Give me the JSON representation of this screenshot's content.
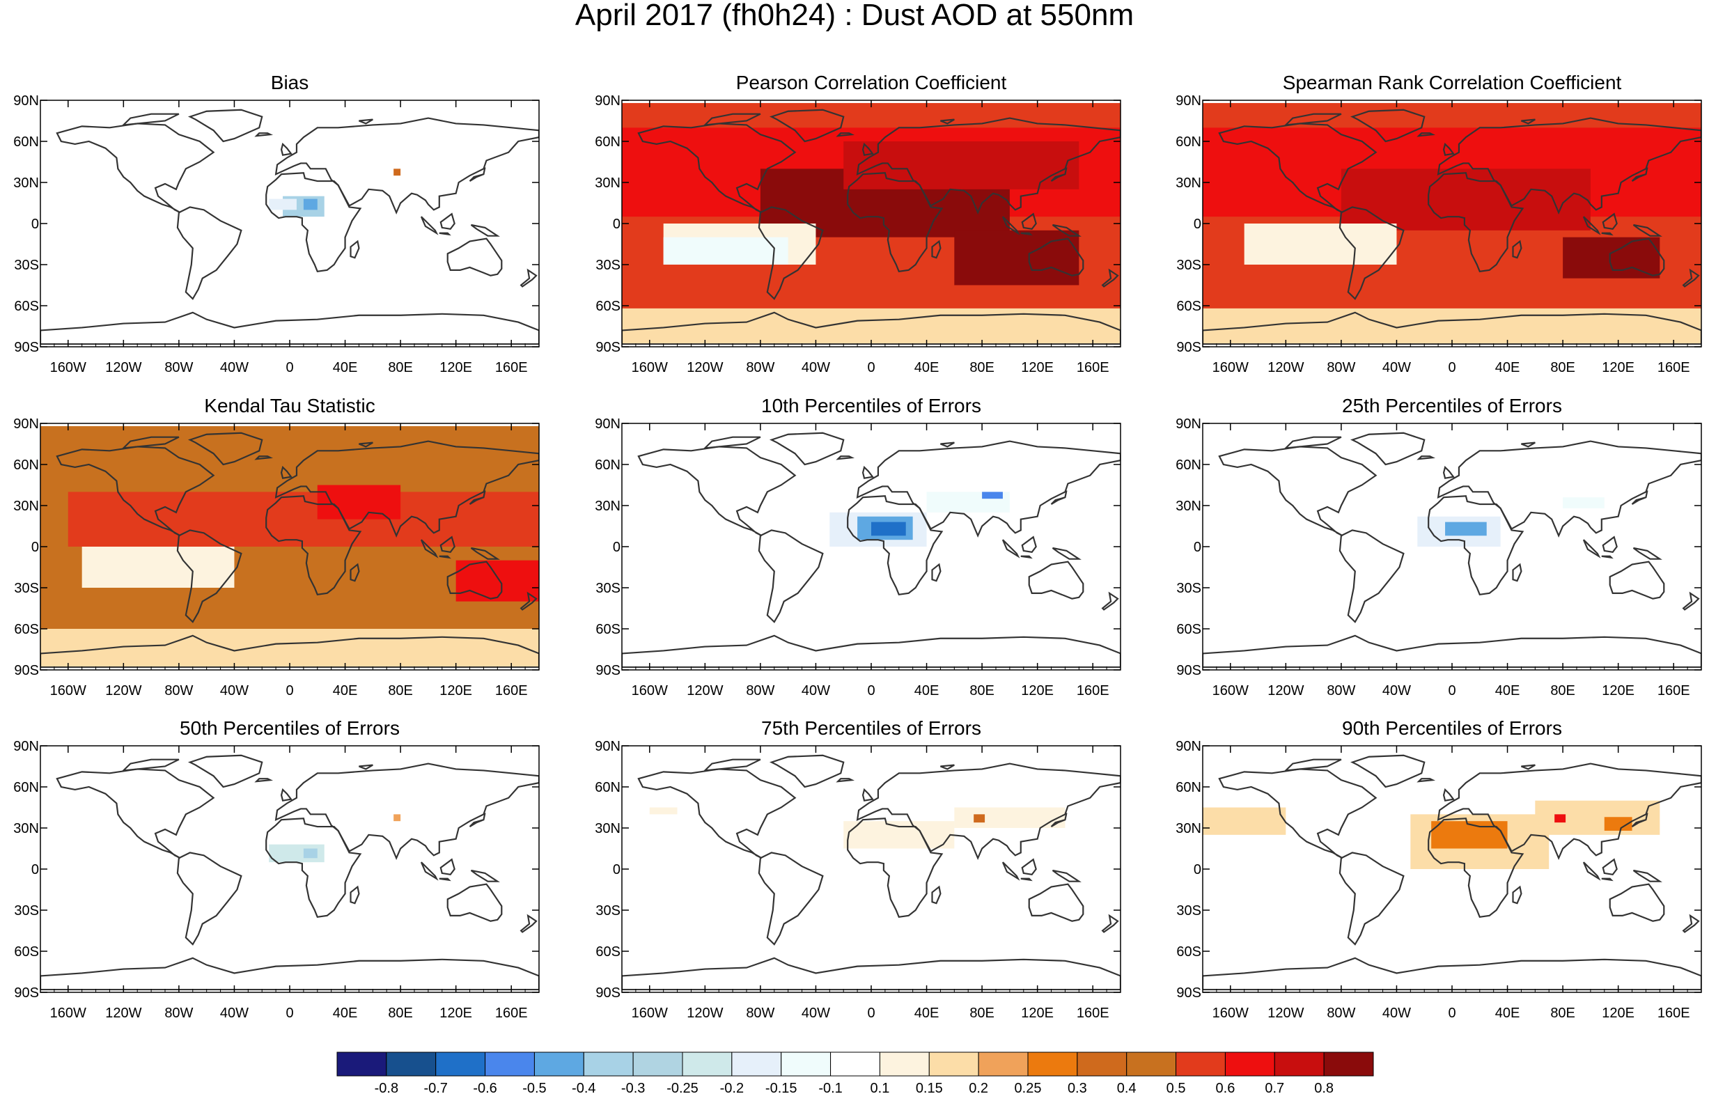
{
  "figure": {
    "title": "April 2017 (fh0h24) : Dust AOD at 550nm"
  },
  "axes": {
    "lat_labels": [
      "90N",
      "60N",
      "30N",
      "0",
      "30S",
      "60S",
      "90S"
    ],
    "lat_values": [
      90,
      60,
      30,
      0,
      -30,
      -60,
      -90
    ],
    "lon_labels": [
      "160W",
      "120W",
      "80W",
      "40W",
      "0",
      "40E",
      "80E",
      "120E",
      "160E"
    ],
    "lon_values": [
      -160,
      -120,
      -80,
      -40,
      0,
      40,
      80,
      120,
      160
    ],
    "lon_range": [
      -180,
      180
    ],
    "lat_range": [
      -90,
      90
    ]
  },
  "colorbar": {
    "labels": [
      "-0.8",
      "-0.7",
      "-0.6",
      "-0.5",
      "-0.4",
      "-0.3",
      "-0.25",
      "-0.2",
      "-0.15",
      "-0.1",
      "0.1",
      "0.15",
      "0.2",
      "0.25",
      "0.3",
      "0.4",
      "0.5",
      "0.6",
      "0.7",
      "0.8"
    ],
    "colors": [
      "#1a1a7a",
      "#17508e",
      "#1f70c8",
      "#4a86ec",
      "#5ea8e2",
      "#a8d2e6",
      "#b0d4e2",
      "#cfe9ea",
      "#e6f0fa",
      "#f0fcfc",
      "#ffffff",
      "#fdf3df",
      "#fcdda8",
      "#f0a25a",
      "#ec7a0e",
      "#cf6a1d",
      "#c8711f",
      "#e23b1c",
      "#ee0f0f",
      "#c80e0e",
      "#8a0b0b"
    ]
  },
  "chart_data": [
    {
      "type": "heatmap",
      "title": "Bias",
      "xlim": [
        -180,
        180
      ],
      "ylim": [
        -90,
        90
      ],
      "regions": [
        {
          "lon": [
            -5,
            25
          ],
          "lat": [
            5,
            20
          ],
          "value": -0.4
        },
        {
          "lon": [
            10,
            20
          ],
          "lat": [
            10,
            18
          ],
          "value": -0.5
        },
        {
          "lon": [
            -15,
            5
          ],
          "lat": [
            10,
            18
          ],
          "value": -0.2
        },
        {
          "lon": [
            75,
            80
          ],
          "lat": [
            35,
            40
          ],
          "value": 0.3
        }
      ]
    },
    {
      "type": "heatmap",
      "title": "Pearson Correlation Coefficient",
      "xlim": [
        -180,
        180
      ],
      "ylim": [
        -90,
        90
      ],
      "regions": [
        {
          "lon": [
            -180,
            180
          ],
          "lat": [
            -62,
            88
          ],
          "value": 0.5
        },
        {
          "lon": [
            -180,
            180
          ],
          "lat": [
            5,
            70
          ],
          "value": 0.6
        },
        {
          "lon": [
            -80,
            100
          ],
          "lat": [
            -10,
            40
          ],
          "value": 0.8
        },
        {
          "lon": [
            -20,
            150
          ],
          "lat": [
            25,
            60
          ],
          "value": 0.7
        },
        {
          "lon": [
            60,
            150
          ],
          "lat": [
            -45,
            -5
          ],
          "value": 0.8
        },
        {
          "lon": [
            -150,
            -40
          ],
          "lat": [
            -30,
            0
          ],
          "value": 0.1
        },
        {
          "lon": [
            -150,
            -60
          ],
          "lat": [
            -30,
            -10
          ],
          "value": -0.15
        },
        {
          "lon": [
            -180,
            180
          ],
          "lat": [
            -88,
            -62
          ],
          "value": 0.15
        }
      ]
    },
    {
      "type": "heatmap",
      "title": "Spearman Rank Correlation Coefficient",
      "xlim": [
        -180,
        180
      ],
      "ylim": [
        -90,
        90
      ],
      "regions": [
        {
          "lon": [
            -180,
            180
          ],
          "lat": [
            -62,
            88
          ],
          "value": 0.5
        },
        {
          "lon": [
            -180,
            180
          ],
          "lat": [
            5,
            70
          ],
          "value": 0.6
        },
        {
          "lon": [
            -80,
            100
          ],
          "lat": [
            -5,
            40
          ],
          "value": 0.7
        },
        {
          "lon": [
            80,
            150
          ],
          "lat": [
            -40,
            -10
          ],
          "value": 0.8
        },
        {
          "lon": [
            -150,
            -40
          ],
          "lat": [
            -30,
            0
          ],
          "value": 0.1
        },
        {
          "lon": [
            -180,
            180
          ],
          "lat": [
            -88,
            -62
          ],
          "value": 0.15
        }
      ]
    },
    {
      "type": "heatmap",
      "title": "Kendal Tau Statistic",
      "xlim": [
        -180,
        180
      ],
      "ylim": [
        -90,
        90
      ],
      "regions": [
        {
          "lon": [
            -180,
            180
          ],
          "lat": [
            -60,
            88
          ],
          "value": 0.4
        },
        {
          "lon": [
            -160,
            180
          ],
          "lat": [
            0,
            40
          ],
          "value": 0.5
        },
        {
          "lon": [
            20,
            80
          ],
          "lat": [
            20,
            45
          ],
          "value": 0.6
        },
        {
          "lon": [
            120,
            180
          ],
          "lat": [
            -40,
            -10
          ],
          "value": 0.6
        },
        {
          "lon": [
            -150,
            -40
          ],
          "lat": [
            -30,
            0
          ],
          "value": 0.1
        },
        {
          "lon": [
            -180,
            180
          ],
          "lat": [
            -88,
            -60
          ],
          "value": 0.15
        }
      ]
    },
    {
      "type": "heatmap",
      "title": "10th Percentiles of Errors",
      "xlim": [
        -180,
        180
      ],
      "ylim": [
        -90,
        90
      ],
      "regions": [
        {
          "lon": [
            -30,
            40
          ],
          "lat": [
            0,
            25
          ],
          "value": -0.2
        },
        {
          "lon": [
            -10,
            30
          ],
          "lat": [
            5,
            22
          ],
          "value": -0.5
        },
        {
          "lon": [
            0,
            25
          ],
          "lat": [
            8,
            18
          ],
          "value": -0.7
        },
        {
          "lon": [
            40,
            100
          ],
          "lat": [
            25,
            40
          ],
          "value": -0.15
        },
        {
          "lon": [
            80,
            95
          ],
          "lat": [
            35,
            40
          ],
          "value": -0.6
        }
      ]
    },
    {
      "type": "heatmap",
      "title": "25th Percentiles of Errors",
      "xlim": [
        -180,
        180
      ],
      "ylim": [
        -90,
        90
      ],
      "regions": [
        {
          "lon": [
            -25,
            35
          ],
          "lat": [
            0,
            22
          ],
          "value": -0.2
        },
        {
          "lon": [
            -5,
            25
          ],
          "lat": [
            8,
            18
          ],
          "value": -0.5
        },
        {
          "lon": [
            80,
            110
          ],
          "lat": [
            28,
            36
          ],
          "value": -0.15
        }
      ]
    },
    {
      "type": "heatmap",
      "title": "50th Percentiles of Errors",
      "xlim": [
        -180,
        180
      ],
      "ylim": [
        -90,
        90
      ],
      "regions": [
        {
          "lon": [
            -15,
            25
          ],
          "lat": [
            5,
            18
          ],
          "value": -0.25
        },
        {
          "lon": [
            10,
            20
          ],
          "lat": [
            8,
            15
          ],
          "value": -0.4
        },
        {
          "lon": [
            75,
            80
          ],
          "lat": [
            35,
            40
          ],
          "value": 0.2
        }
      ]
    },
    {
      "type": "heatmap",
      "title": "75th Percentiles of Errors",
      "xlim": [
        -180,
        180
      ],
      "ylim": [
        -90,
        90
      ],
      "regions": [
        {
          "lon": [
            -20,
            60
          ],
          "lat": [
            15,
            35
          ],
          "value": 0.1
        },
        {
          "lon": [
            60,
            140
          ],
          "lat": [
            30,
            45
          ],
          "value": 0.1
        },
        {
          "lon": [
            74,
            82
          ],
          "lat": [
            34,
            40
          ],
          "value": 0.3
        },
        {
          "lon": [
            -160,
            -140
          ],
          "lat": [
            40,
            45
          ],
          "value": 0.1
        }
      ]
    },
    {
      "type": "heatmap",
      "title": "90th Percentiles of Errors",
      "xlim": [
        -180,
        180
      ],
      "ylim": [
        -90,
        90
      ],
      "regions": [
        {
          "lon": [
            -180,
            -120
          ],
          "lat": [
            25,
            45
          ],
          "value": 0.15
        },
        {
          "lon": [
            -30,
            70
          ],
          "lat": [
            0,
            40
          ],
          "value": 0.15
        },
        {
          "lon": [
            -15,
            40
          ],
          "lat": [
            15,
            35
          ],
          "value": 0.25
        },
        {
          "lon": [
            60,
            150
          ],
          "lat": [
            25,
            50
          ],
          "value": 0.15
        },
        {
          "lon": [
            74,
            82
          ],
          "lat": [
            34,
            40
          ],
          "value": 0.6
        },
        {
          "lon": [
            110,
            130
          ],
          "lat": [
            28,
            38
          ],
          "value": 0.25
        }
      ]
    }
  ]
}
